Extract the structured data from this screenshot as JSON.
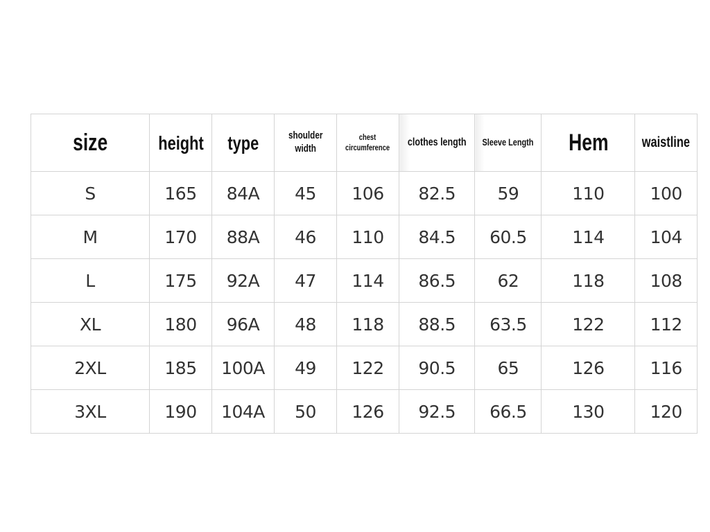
{
  "table": {
    "headers": [
      "size",
      "height",
      "type",
      "shoulder width",
      "chest circumference",
      "clothes length",
      "Sleeve Length",
      "Hem",
      "waistline"
    ],
    "header_lines": {
      "shoulder": [
        "shoulder",
        "width"
      ],
      "chest": [
        "chest",
        "circumference"
      ]
    },
    "rows": [
      [
        "S",
        "165",
        "84A",
        "45",
        "106",
        "82.5",
        "59",
        "110",
        "100"
      ],
      [
        "M",
        "170",
        "88A",
        "46",
        "110",
        "84.5",
        "60.5",
        "114",
        "104"
      ],
      [
        "L",
        "175",
        "92A",
        "47",
        "114",
        "86.5",
        "62",
        "118",
        "108"
      ],
      [
        "XL",
        "180",
        "96A",
        "48",
        "118",
        "88.5",
        "63.5",
        "122",
        "112"
      ],
      [
        "2XL",
        "185",
        "100A",
        "49",
        "122",
        "90.5",
        "65",
        "126",
        "116"
      ],
      [
        "3XL",
        "190",
        "104A",
        "50",
        "126",
        "92.5",
        "66.5",
        "130",
        "120"
      ]
    ]
  },
  "colors": {
    "border": "#d4d4d4",
    "text": "#333333"
  }
}
